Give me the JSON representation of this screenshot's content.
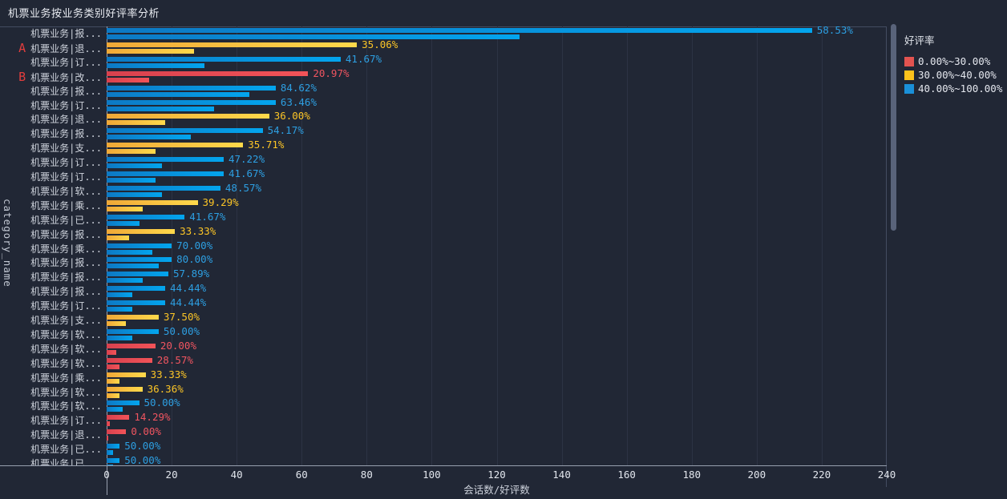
{
  "chart_data": {
    "type": "bar",
    "orientation": "horizontal",
    "title": "机票业务按业务类别好评率分析",
    "xlabel": "会话数/好评数",
    "ylabel": "category_name",
    "xlim": [
      0,
      240
    ],
    "x_ticks": [
      0,
      20,
      40,
      60,
      80,
      100,
      120,
      140,
      160,
      180,
      200,
      220,
      240
    ],
    "grid": true,
    "scrollable": true,
    "legend": {
      "title": "好评率",
      "position": "right",
      "entries": [
        {
          "label": "0.00%~30.00%",
          "bucket": "red",
          "color": "#e25350"
        },
        {
          "label": "30.00%~40.00%",
          "bucket": "yellow",
          "color": "#fcc21c"
        },
        {
          "label": "40.00%~100.00%",
          "bucket": "blue",
          "color": "#1a90d9"
        }
      ]
    },
    "series_meaning": [
      "会话数 (long bar)",
      "好评数 (short bar)"
    ],
    "rows": [
      {
        "category": "机票业务|报...",
        "annotation": "",
        "rate": "58.53%",
        "bucket": "blue",
        "sessions": 217,
        "favorable": 127
      },
      {
        "category": "机票业务|退...",
        "annotation": "A",
        "rate": "35.06%",
        "bucket": "yellow",
        "sessions": 77,
        "favorable": 27
      },
      {
        "category": "机票业务|订...",
        "annotation": "",
        "rate": "41.67%",
        "bucket": "blue",
        "sessions": 72,
        "favorable": 30
      },
      {
        "category": "机票业务|改...",
        "annotation": "B",
        "rate": "20.97%",
        "bucket": "red",
        "sessions": 62,
        "favorable": 13
      },
      {
        "category": "机票业务|报...",
        "annotation": "",
        "rate": "84.62%",
        "bucket": "blue",
        "sessions": 52,
        "favorable": 44
      },
      {
        "category": "机票业务|订...",
        "annotation": "",
        "rate": "63.46%",
        "bucket": "blue",
        "sessions": 52,
        "favorable": 33
      },
      {
        "category": "机票业务|退...",
        "annotation": "",
        "rate": "36.00%",
        "bucket": "yellow",
        "sessions": 50,
        "favorable": 18
      },
      {
        "category": "机票业务|报...",
        "annotation": "",
        "rate": "54.17%",
        "bucket": "blue",
        "sessions": 48,
        "favorable": 26
      },
      {
        "category": "机票业务|支...",
        "annotation": "",
        "rate": "35.71%",
        "bucket": "yellow",
        "sessions": 42,
        "favorable": 15
      },
      {
        "category": "机票业务|订...",
        "annotation": "",
        "rate": "47.22%",
        "bucket": "blue",
        "sessions": 36,
        "favorable": 17
      },
      {
        "category": "机票业务|订...",
        "annotation": "",
        "rate": "41.67%",
        "bucket": "blue",
        "sessions": 36,
        "favorable": 15
      },
      {
        "category": "机票业务|软...",
        "annotation": "",
        "rate": "48.57%",
        "bucket": "blue",
        "sessions": 35,
        "favorable": 17
      },
      {
        "category": "机票业务|乘...",
        "annotation": "",
        "rate": "39.29%",
        "bucket": "yellow",
        "sessions": 28,
        "favorable": 11
      },
      {
        "category": "机票业务|已...",
        "annotation": "",
        "rate": "41.67%",
        "bucket": "blue",
        "sessions": 24,
        "favorable": 10
      },
      {
        "category": "机票业务|报...",
        "annotation": "",
        "rate": "33.33%",
        "bucket": "yellow",
        "sessions": 21,
        "favorable": 7
      },
      {
        "category": "机票业务|乘...",
        "annotation": "",
        "rate": "70.00%",
        "bucket": "blue",
        "sessions": 20,
        "favorable": 14
      },
      {
        "category": "机票业务|报...",
        "annotation": "",
        "rate": "80.00%",
        "bucket": "blue",
        "sessions": 20,
        "favorable": 16
      },
      {
        "category": "机票业务|报...",
        "annotation": "",
        "rate": "57.89%",
        "bucket": "blue",
        "sessions": 19,
        "favorable": 11
      },
      {
        "category": "机票业务|报...",
        "annotation": "",
        "rate": "44.44%",
        "bucket": "blue",
        "sessions": 18,
        "favorable": 8
      },
      {
        "category": "机票业务|订...",
        "annotation": "",
        "rate": "44.44%",
        "bucket": "blue",
        "sessions": 18,
        "favorable": 8
      },
      {
        "category": "机票业务|支...",
        "annotation": "",
        "rate": "37.50%",
        "bucket": "yellow",
        "sessions": 16,
        "favorable": 6
      },
      {
        "category": "机票业务|软...",
        "annotation": "",
        "rate": "50.00%",
        "bucket": "blue",
        "sessions": 16,
        "favorable": 8
      },
      {
        "category": "机票业务|软...",
        "annotation": "",
        "rate": "20.00%",
        "bucket": "red",
        "sessions": 15,
        "favorable": 3
      },
      {
        "category": "机票业务|软...",
        "annotation": "",
        "rate": "28.57%",
        "bucket": "red",
        "sessions": 14,
        "favorable": 4
      },
      {
        "category": "机票业务|乘...",
        "annotation": "",
        "rate": "33.33%",
        "bucket": "yellow",
        "sessions": 12,
        "favorable": 4
      },
      {
        "category": "机票业务|软...",
        "annotation": "",
        "rate": "36.36%",
        "bucket": "yellow",
        "sessions": 11,
        "favorable": 4
      },
      {
        "category": "机票业务|软...",
        "annotation": "",
        "rate": "50.00%",
        "bucket": "blue",
        "sessions": 10,
        "favorable": 5
      },
      {
        "category": "机票业务|订...",
        "annotation": "",
        "rate": "14.29%",
        "bucket": "red",
        "sessions": 7,
        "favorable": 1
      },
      {
        "category": "机票业务|退...",
        "annotation": "",
        "rate": "0.00%",
        "bucket": "red",
        "sessions": 6,
        "favorable": 0
      },
      {
        "category": "机票业务|已...",
        "annotation": "",
        "rate": "50.00%",
        "bucket": "blue",
        "sessions": 4,
        "favorable": 2
      },
      {
        "category": "机票业务|已...",
        "annotation": "",
        "rate": "50.00%",
        "bucket": "blue",
        "sessions": 4,
        "favorable": 2
      }
    ]
  },
  "colors": {
    "background": "#212735",
    "red": "#e25350",
    "yellow": "#fcc21c",
    "blue": "#1a90d9",
    "annotation": "#e23d3d"
  }
}
